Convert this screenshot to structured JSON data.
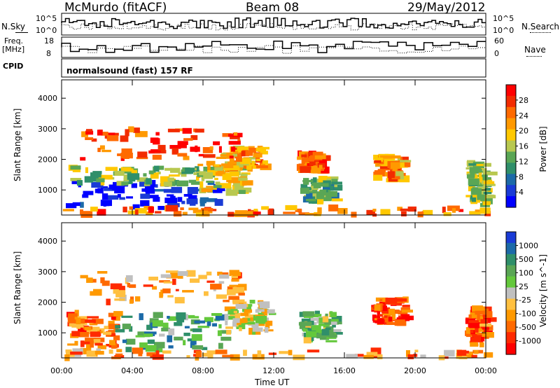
{
  "header": {
    "station": "McMurdo (fitACF)",
    "beam": "Beam 08",
    "date": "29/May/2012",
    "cpid_label": "CPID",
    "cpid_value": "normalsound (fast) 157 RF"
  },
  "strip_panels": {
    "noise": {
      "left_label": "N.Sky",
      "right_label": "N.Search",
      "left_ticks": [
        "10^5",
        "10^0"
      ],
      "right_ticks": [
        "10^5",
        "10^0"
      ]
    },
    "freq": {
      "left_label_line1": "Freq.",
      "left_label_line2": "[MHz]",
      "left_ticks": [
        18,
        8
      ],
      "right_label": "Nave",
      "right_ticks": [
        60,
        0
      ]
    }
  },
  "chart_data": [
    {
      "type": "heatmap",
      "name": "power",
      "ylabel": "Slant Range [km]",
      "xlabel": "Time UT",
      "xlim_hours": [
        0,
        24
      ],
      "ylim_km": [
        180,
        4600
      ],
      "y_ticks": [
        1000,
        2000,
        3000,
        4000
      ],
      "x_ticks": [
        "00:00",
        "04:00",
        "08:00",
        "12:00",
        "16:00",
        "20:00",
        "00:00"
      ],
      "colorbar": {
        "label": "Power [dB]",
        "ticks": [
          28,
          24,
          20,
          16,
          12,
          8,
          4
        ],
        "colors": [
          "#ff0000",
          "#f22b00",
          "#ff6a00",
          "#ff9900",
          "#ffc800",
          "#b8c850",
          "#5aa655",
          "#2f8f6a",
          "#1c6aa8",
          "#1a3bd6",
          "#0000ff"
        ]
      },
      "regions": [
        {
          "t0": 0.2,
          "t1": 8.8,
          "r0": 400,
          "r1": 1250,
          "level": 0.95
        },
        {
          "t0": 0.3,
          "t1": 7.6,
          "r0": 1150,
          "r1": 1750,
          "level": 0.55
        },
        {
          "t0": 7.6,
          "t1": 10.4,
          "r0": 900,
          "r1": 1900,
          "level": 0.45
        },
        {
          "t0": 9.0,
          "t1": 11.4,
          "r0": 1700,
          "r1": 2400,
          "level": 0.3
        },
        {
          "t0": 1.0,
          "t1": 10.0,
          "r0": 2000,
          "r1": 3000,
          "level": 0.15
        },
        {
          "t0": 13.5,
          "t1": 15.3,
          "r0": 600,
          "r1": 1400,
          "level": 0.6
        },
        {
          "t0": 13.3,
          "t1": 14.6,
          "r0": 1600,
          "r1": 2200,
          "level": 0.2
        },
        {
          "t0": 17.6,
          "t1": 19.2,
          "r0": 1300,
          "r1": 2100,
          "level": 0.3
        },
        {
          "t0": 22.8,
          "t1": 24.0,
          "r0": 500,
          "r1": 1900,
          "level": 0.55
        },
        {
          "t0": 0.0,
          "t1": 24.0,
          "r0": 180,
          "r1": 420,
          "level": 0.25
        }
      ]
    },
    {
      "type": "heatmap",
      "name": "velocity",
      "ylabel": "Slant Range [km]",
      "xlabel": "Time UT",
      "xlim_hours": [
        0,
        24
      ],
      "ylim_km": [
        180,
        4600
      ],
      "y_ticks": [
        1000,
        2000,
        3000,
        4000
      ],
      "x_ticks": [
        "00:00",
        "04:00",
        "08:00",
        "12:00",
        "16:00",
        "20:00",
        "00:00"
      ],
      "colorbar": {
        "label": "Velocity [m s^-1]",
        "ticks": [
          1000,
          500,
          100,
          25,
          -25,
          -100,
          -500,
          -1000
        ],
        "colors": [
          "#1a3bd6",
          "#1c6aa8",
          "#2f8f6a",
          "#5aa655",
          "#64c83c",
          "#c0c0c0",
          "#ffc040",
          "#ff9900",
          "#ff6a00",
          "#ff2a00",
          "#ff0000"
        ]
      },
      "regions": [
        {
          "t0": 0.2,
          "t1": 3.0,
          "r0": 500,
          "r1": 1700,
          "level": 0.75
        },
        {
          "t0": 3.0,
          "t1": 9.2,
          "r0": 450,
          "r1": 1600,
          "level": 0.3
        },
        {
          "t0": 9.2,
          "t1": 11.8,
          "r0": 1000,
          "r1": 2100,
          "level": 0.55
        },
        {
          "t0": 1.0,
          "t1": 10.0,
          "r0": 2000,
          "r1": 3000,
          "level": 0.7
        },
        {
          "t0": 13.4,
          "t1": 15.4,
          "r0": 700,
          "r1": 1700,
          "level": 0.4
        },
        {
          "t0": 17.5,
          "t1": 19.3,
          "r0": 1300,
          "r1": 2100,
          "level": 0.85
        },
        {
          "t0": 22.8,
          "t1": 24.0,
          "r0": 600,
          "r1": 1800,
          "level": 0.8
        },
        {
          "t0": 0.0,
          "t1": 24.0,
          "r0": 180,
          "r1": 420,
          "level": 0.7
        }
      ]
    }
  ]
}
